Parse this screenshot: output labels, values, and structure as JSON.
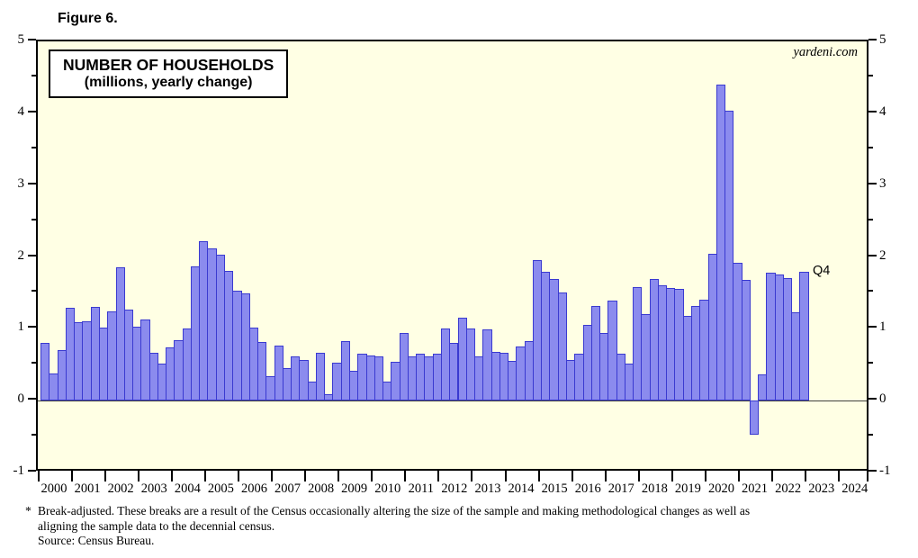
{
  "figure_label": "Figure 6.",
  "watermark": "yardeni.com",
  "last_point_label": "Q4",
  "footnote": {
    "marker": "*",
    "line1": "Break-adjusted. These breaks are a result of the Census occasionally altering the size of the sample and making methodological changes as well as",
    "line2": "aligning the sample data to the decennial census.",
    "source": "Source: Census Bureau."
  },
  "colors": {
    "plot_background": "#ffffe4",
    "page_background": "#ffffff",
    "bar_fill": "#8b8bee",
    "bar_border": "#3a3ad0",
    "frame": "#000000",
    "zero_line": "#40403e"
  },
  "chart_data": {
    "type": "bar",
    "title": "NUMBER OF HOUSEHOLDS",
    "subtitle": "(millions, yearly change)",
    "ylabel": "",
    "xlabel": "",
    "ylim": [
      -1,
      5
    ],
    "yticks_major": [
      5,
      4,
      3,
      2,
      1,
      0,
      -1
    ],
    "yticks_minor": [
      4.5,
      3.5,
      2.5,
      1.5,
      0.5,
      -0.5
    ],
    "grid": false,
    "legend_position": "none",
    "x_axis_years": [
      "2000",
      "2001",
      "2002",
      "2003",
      "2004",
      "2005",
      "2006",
      "2007",
      "2008",
      "2009",
      "2010",
      "2011",
      "2012",
      "2013",
      "2014",
      "2015",
      "2016",
      "2017",
      "2018",
      "2019",
      "2020",
      "2021",
      "2022",
      "2023",
      "2024"
    ],
    "frequency": "quarterly",
    "annotation_last_point": "Q4 2022",
    "years": [
      {
        "year": "2000",
        "quarters": [
          0.8,
          0.38,
          0.7,
          1.29
        ]
      },
      {
        "year": "2001",
        "quarters": [
          1.09,
          1.11,
          1.31,
          1.02
        ]
      },
      {
        "year": "2002",
        "quarters": [
          1.24,
          1.85,
          1.27,
          1.03
        ]
      },
      {
        "year": "2003",
        "quarters": [
          1.13,
          0.67,
          0.52,
          0.74
        ]
      },
      {
        "year": "2004",
        "quarters": [
          0.84,
          1.0,
          1.87,
          2.22
        ]
      },
      {
        "year": "2005",
        "quarters": [
          2.12,
          2.03,
          1.8,
          1.53
        ]
      },
      {
        "year": "2006",
        "quarters": [
          1.49,
          1.02,
          0.82,
          0.34
        ]
      },
      {
        "year": "2007",
        "quarters": [
          0.77,
          0.45,
          0.62,
          0.56
        ]
      },
      {
        "year": "2008",
        "quarters": [
          0.26,
          0.67,
          0.09,
          0.53
        ]
      },
      {
        "year": "2009",
        "quarters": [
          0.83,
          0.42,
          0.65,
          0.63
        ]
      },
      {
        "year": "2010",
        "quarters": [
          0.62,
          0.26,
          0.54,
          0.94
        ]
      },
      {
        "year": "2011",
        "quarters": [
          0.61,
          0.65,
          0.62,
          0.65
        ]
      },
      {
        "year": "2012",
        "quarters": [
          1.01,
          0.81,
          1.16,
          1.0
        ]
      },
      {
        "year": "2013",
        "quarters": [
          0.61,
          0.99,
          0.68,
          0.67
        ]
      },
      {
        "year": "2014",
        "quarters": [
          0.55,
          0.75,
          0.83,
          1.95
        ]
      },
      {
        "year": "2015",
        "quarters": [
          1.79,
          1.69,
          1.51,
          0.56
        ]
      },
      {
        "year": "2016",
        "quarters": [
          0.65,
          1.05,
          1.32,
          0.94
        ]
      },
      {
        "year": "2017",
        "quarters": [
          1.39,
          0.65,
          0.52,
          1.58
        ]
      },
      {
        "year": "2018",
        "quarters": [
          1.21,
          1.69,
          1.6,
          1.57
        ]
      },
      {
        "year": "2019",
        "quarters": [
          1.55,
          1.18,
          1.32,
          1.4
        ]
      },
      {
        "year": "2020",
        "quarters": [
          2.04,
          4.4,
          4.04,
          1.92
        ]
      },
      {
        "year": "2021",
        "quarters": [
          1.68,
          -0.48,
          0.37,
          1.78
        ]
      },
      {
        "year": "2022",
        "quarters": [
          1.75,
          1.7,
          1.23,
          1.79
        ]
      }
    ]
  }
}
